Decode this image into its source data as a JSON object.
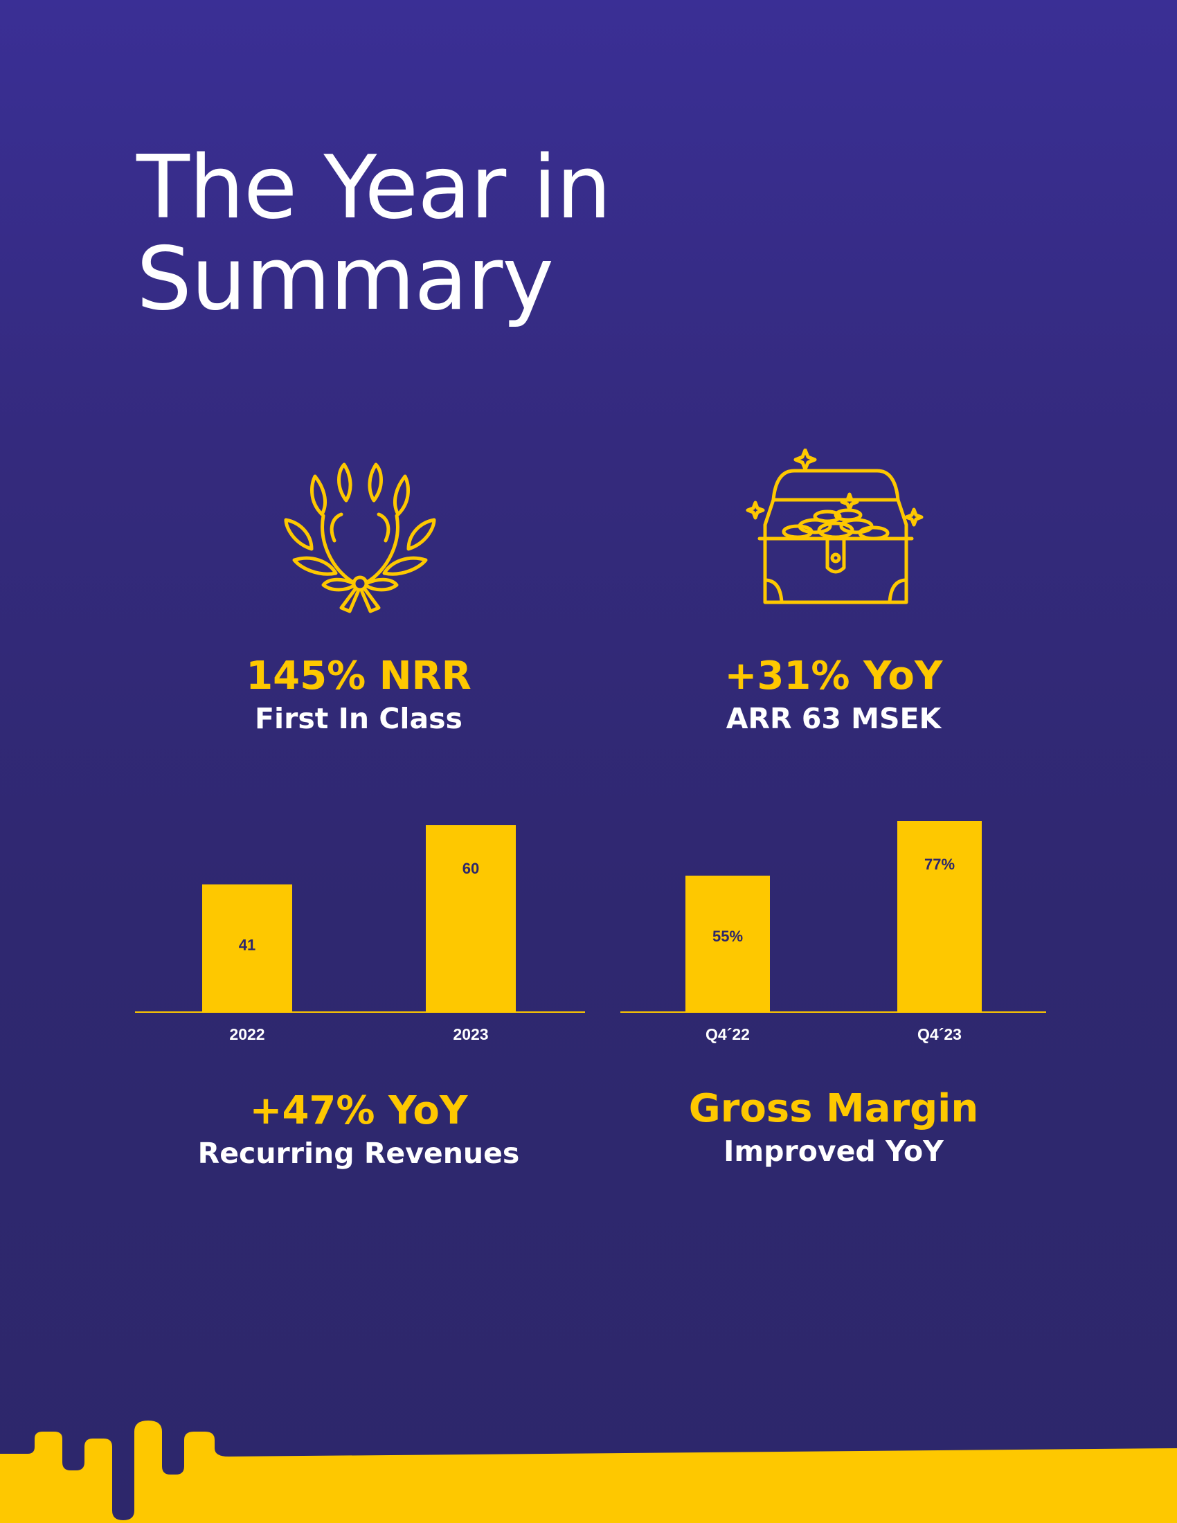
{
  "page": {
    "title_line1": "The Year in",
    "title_line2": "Summary"
  },
  "colors": {
    "background": "#2f2870",
    "accent": "#fec800",
    "text": "#ffffff",
    "bar_label": "#2d276b"
  },
  "icons": {
    "left": "laurel-wreath-icon",
    "right": "treasure-chest-icon"
  },
  "stats": {
    "nrr": {
      "headline": "145% NRR",
      "subtitle": "First In Class"
    },
    "arr": {
      "headline": "+31% YoY",
      "subtitle": "ARR 63 MSEK"
    },
    "revenue": {
      "headline": "+47% YoY",
      "subtitle": "Recurring Revenues"
    },
    "margin": {
      "headline": "Gross Margin",
      "subtitle": "Improved YoY"
    }
  },
  "chart_data": [
    {
      "type": "bar",
      "categories": [
        "2022",
        "2023"
      ],
      "values": [
        41,
        60
      ],
      "value_labels": [
        "41",
        "60"
      ],
      "ylim": [
        0,
        60
      ]
    },
    {
      "type": "bar",
      "categories": [
        "Q4´22",
        "Q4´23"
      ],
      "values": [
        55,
        77
      ],
      "value_labels": [
        "55%",
        "77%"
      ],
      "ylim": [
        0,
        77
      ]
    }
  ]
}
